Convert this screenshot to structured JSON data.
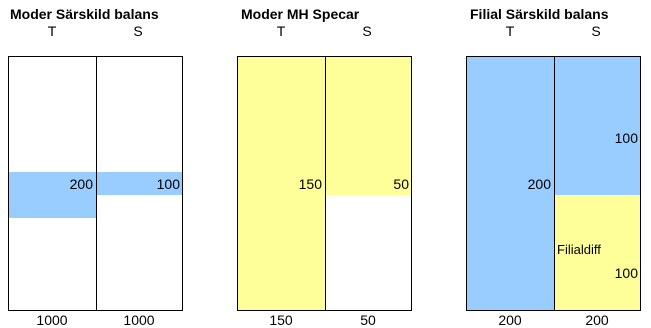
{
  "colors": {
    "blue": "#99ccff",
    "yellow": "#ffff99",
    "border": "#000000"
  },
  "panels": [
    {
      "title": "Moder Särskild balans",
      "col_t": "T",
      "col_s": "S",
      "values": {
        "t_amount": "200",
        "s_amount": "100"
      },
      "totals": {
        "t": "1000",
        "s": "1000"
      }
    },
    {
      "title": "Moder MH Specar",
      "col_t": "T",
      "col_s": "S",
      "values": {
        "t_amount": "150",
        "s_amount": "50"
      },
      "totals": {
        "t": "150",
        "s": "50"
      }
    },
    {
      "title": "Filial Särskild balans",
      "col_t": "T",
      "col_s": "S",
      "values": {
        "t_amount": "200",
        "s_amount": "100",
        "diff_label": "Filialdiff",
        "diff_amount": "100"
      },
      "totals": {
        "t": "200",
        "s": "200"
      }
    }
  ]
}
